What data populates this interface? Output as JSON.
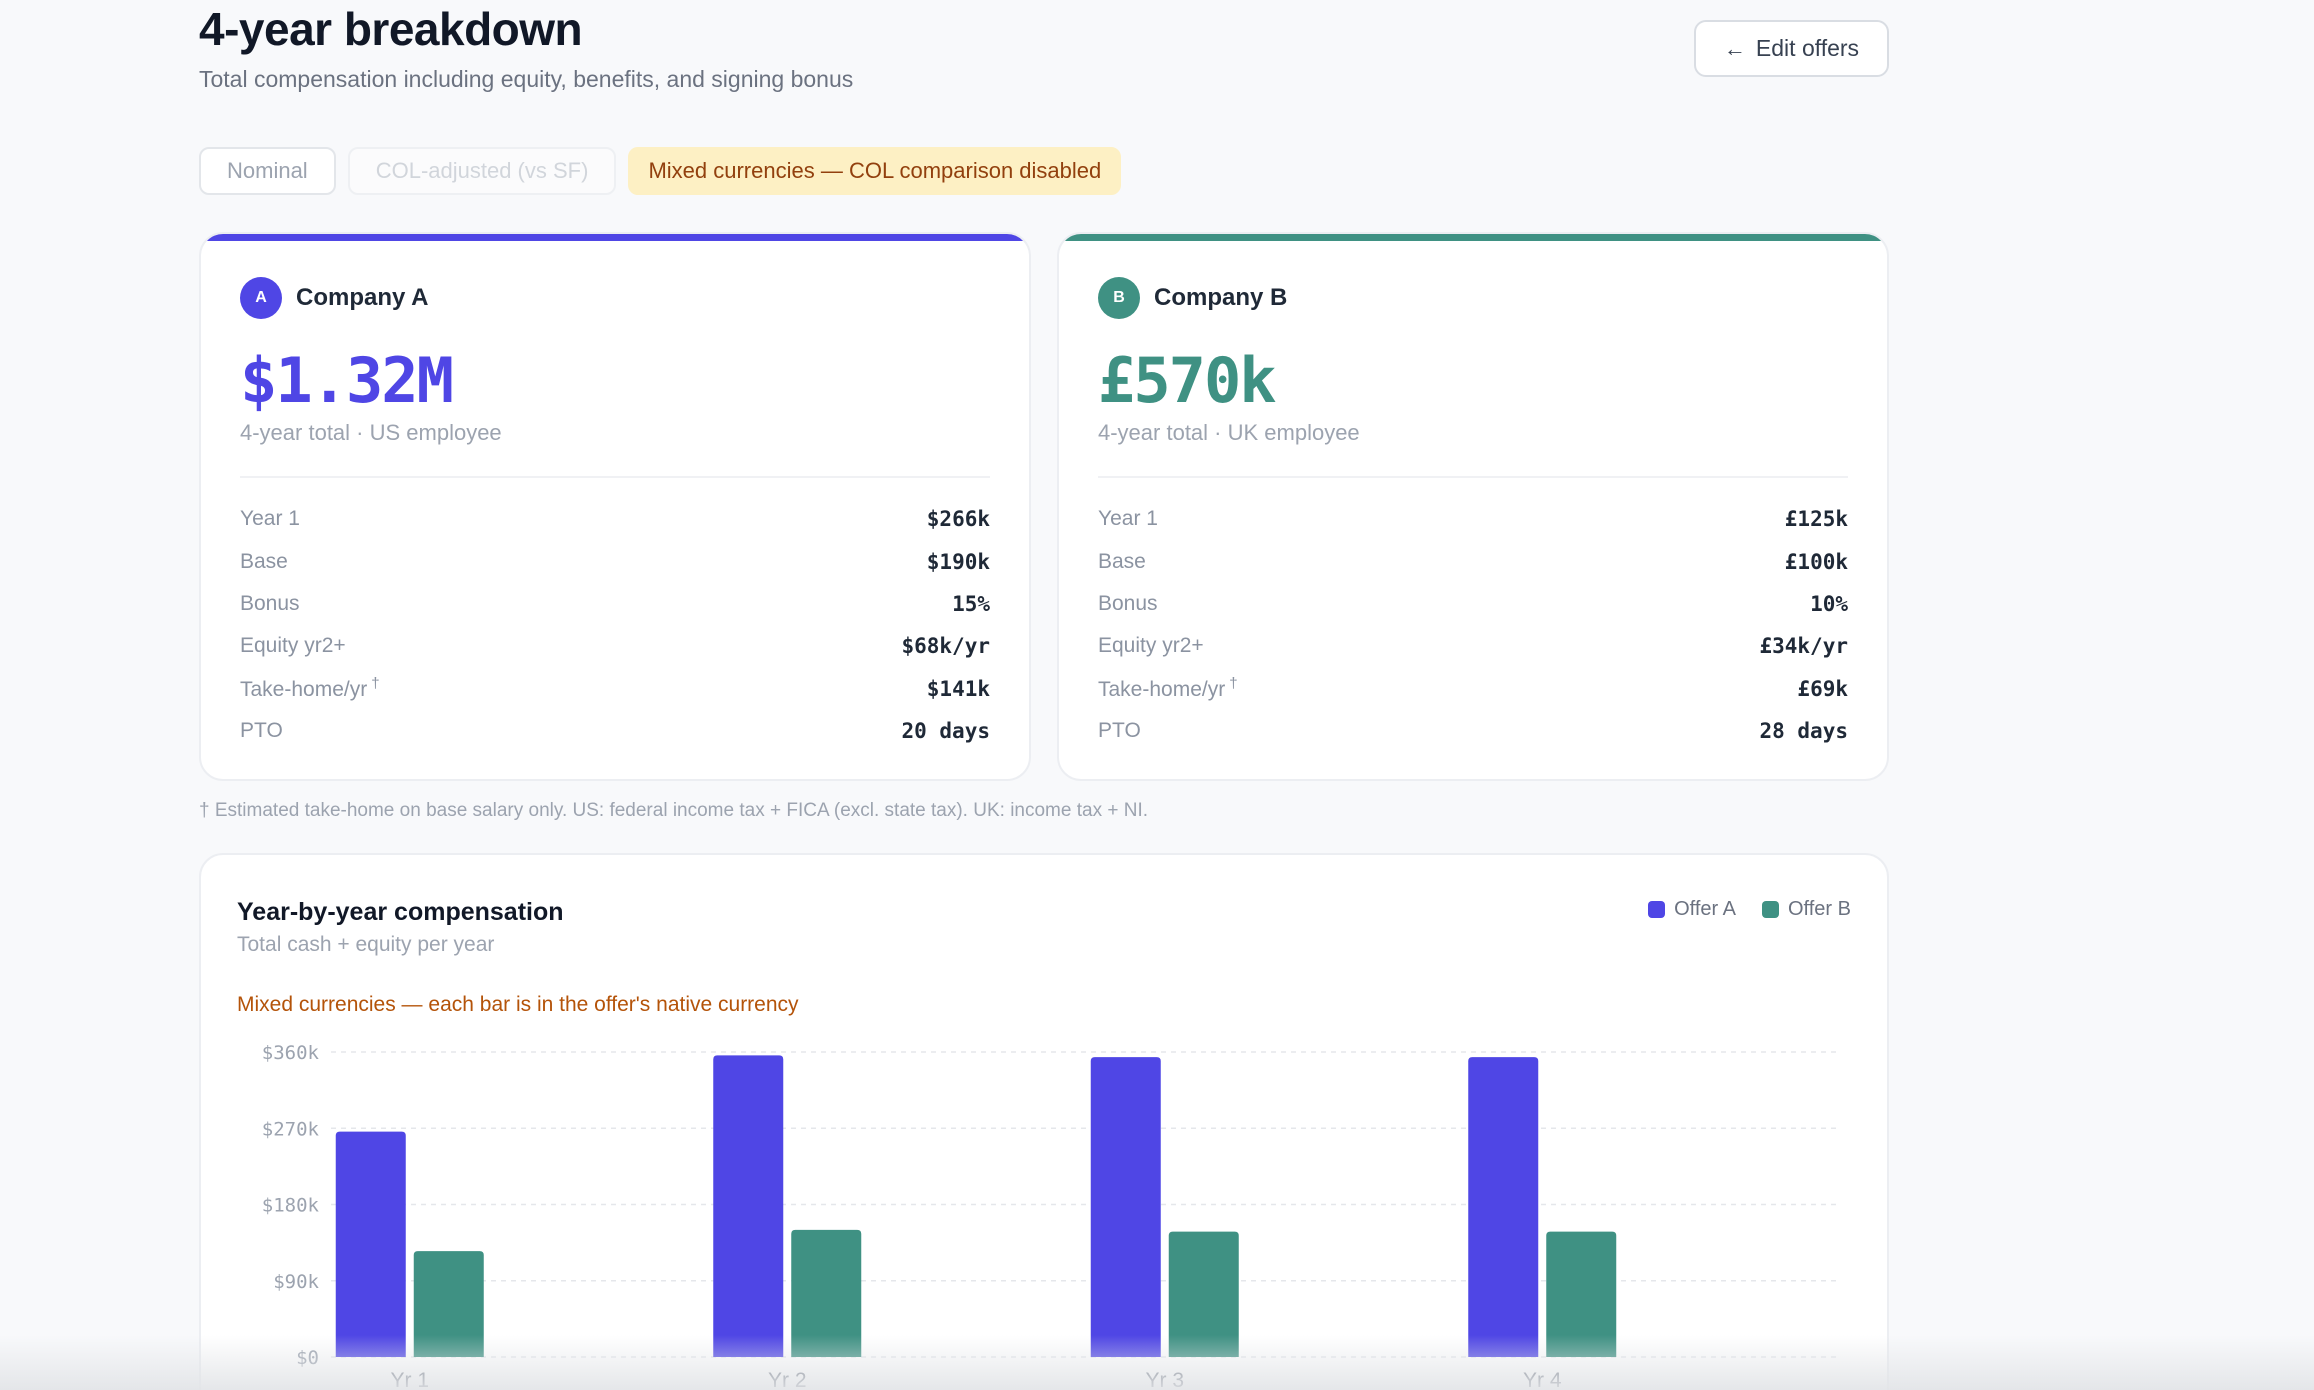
{
  "header": {
    "title": "4-year breakdown",
    "subtitle": "Total compensation including equity, benefits, and signing bonus",
    "edit_arrow": "←",
    "edit_label": "Edit offers"
  },
  "toggles": {
    "nominal": "Nominal",
    "col_adjusted": "COL-adjusted (vs SF)",
    "mixed_warning": "Mixed currencies — COL comparison disabled"
  },
  "offers": [
    {
      "initial": "A",
      "company": "Company A",
      "total": "$1.32M",
      "total_sub": "4-year total · US employee",
      "color": "#4f46e5",
      "rows": [
        {
          "label": "Year 1",
          "value": "$266k"
        },
        {
          "label": "Base",
          "value": "$190k"
        },
        {
          "label": "Bonus",
          "value": "15%"
        },
        {
          "label": "Equity yr2+",
          "value": "$68k/yr"
        },
        {
          "label": "Take-home/yr",
          "value": "$141k"
        },
        {
          "label": "PTO",
          "value": "20 days"
        }
      ]
    },
    {
      "initial": "B",
      "company": "Company B",
      "total": "£570k",
      "total_sub": "4-year total · UK employee",
      "color": "#3f9183",
      "rows": [
        {
          "label": "Year 1",
          "value": "£125k"
        },
        {
          "label": "Base",
          "value": "£100k"
        },
        {
          "label": "Bonus",
          "value": "10%"
        },
        {
          "label": "Equity yr2+",
          "value": "£34k/yr"
        },
        {
          "label": "Take-home/yr",
          "value": "£69k"
        },
        {
          "label": "PTO",
          "value": "28 days"
        }
      ]
    }
  ],
  "dagger": "†",
  "footnote": "† Estimated take-home on base salary only. US: federal income tax + FICA (excl. state tax). UK: income tax + NI.",
  "chart": {
    "title": "Year-by-year compensation",
    "subtitle": "Total cash + equity per year",
    "warning": "Mixed currencies — each bar is in the offer's native currency"
  },
  "chart_data": {
    "type": "bar",
    "categories": [
      "Yr 1",
      "Yr 2",
      "Yr 3",
      "Yr 4"
    ],
    "series": [
      {
        "name": "Offer A",
        "values": [
          266,
          356,
          354,
          354
        ],
        "color": "#4f46e5"
      },
      {
        "name": "Offer B",
        "values": [
          125,
          150,
          148,
          148
        ],
        "color": "#3f9183"
      }
    ],
    "y_ticks": [
      {
        "value": 0,
        "label": "$0"
      },
      {
        "value": 90,
        "label": "$90k"
      },
      {
        "value": 180,
        "label": "$180k"
      },
      {
        "value": 270,
        "label": "$270k"
      },
      {
        "value": 360,
        "label": "$360k"
      }
    ],
    "ylim": [
      0,
      360
    ],
    "grid": true,
    "legend": "top-right"
  }
}
